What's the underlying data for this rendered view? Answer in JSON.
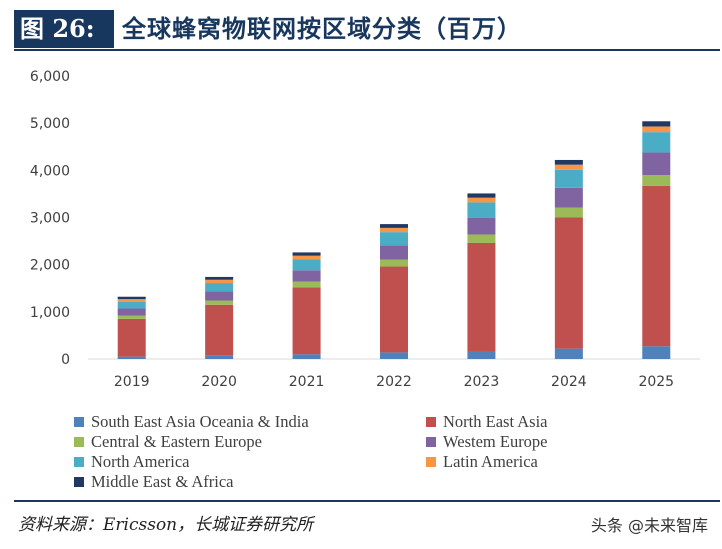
{
  "header": {
    "figure_label": "图 26:",
    "title": "全球蜂窝物联网按区域分类（百万）"
  },
  "chart_data": {
    "type": "bar",
    "stacked": true,
    "categories": [
      "2019",
      "2020",
      "2021",
      "2022",
      "2023",
      "2024",
      "2025"
    ],
    "ylim": [
      0,
      6000
    ],
    "yticks": [
      "0",
      "1,000",
      "2,000",
      "3,000",
      "4,000",
      "5,000",
      "6,000"
    ],
    "ytick_values": [
      0,
      1000,
      2000,
      3000,
      4000,
      5000,
      6000
    ],
    "grid": false,
    "legend_position": "bottom",
    "series": [
      {
        "name": "South East Asia Oceania & India",
        "color": "#4f81bd",
        "values": [
          50,
          70,
          100,
          140,
          170,
          220,
          270
        ]
      },
      {
        "name": "North East Asia",
        "color": "#c0504d",
        "values": [
          800,
          1080,
          1420,
          1820,
          2290,
          2780,
          3400
        ]
      },
      {
        "name": "Central & Eastern Europe",
        "color": "#9bbb59",
        "values": [
          70,
          90,
          120,
          150,
          180,
          210,
          230
        ]
      },
      {
        "name": "Western Europe",
        "color": "#8064a2",
        "values": [
          150,
          190,
          240,
          300,
          350,
          420,
          480
        ]
      },
      {
        "name": "North America",
        "color": "#4bacc6",
        "values": [
          140,
          180,
          230,
          280,
          330,
          380,
          430
        ]
      },
      {
        "name": "Latin America",
        "color": "#f79646",
        "values": [
          60,
          70,
          80,
          90,
          100,
          110,
          120
        ]
      },
      {
        "name": "Middle East & Africa",
        "color": "#1f3864",
        "values": [
          50,
          60,
          70,
          80,
          90,
          100,
          110
        ]
      }
    ]
  },
  "legend": {
    "items": [
      {
        "name": "South East Asia Oceania & India",
        "color": "#4f81bd"
      },
      {
        "name": "North East Asia",
        "color": "#c0504d"
      },
      {
        "name": "Central & Eastern Europe",
        "color": "#9bbb59"
      },
      {
        "name": "Westem Europe",
        "color": "#8064a2"
      },
      {
        "name": "North America",
        "color": "#4bacc6"
      },
      {
        "name": "Latin America",
        "color": "#f79646"
      },
      {
        "name": "Middle East & Africa",
        "color": "#1f3864"
      }
    ]
  },
  "footer": {
    "source": "资料来源：Ericsson，长城证券研究所",
    "watermark": "头条 @未来智库"
  }
}
